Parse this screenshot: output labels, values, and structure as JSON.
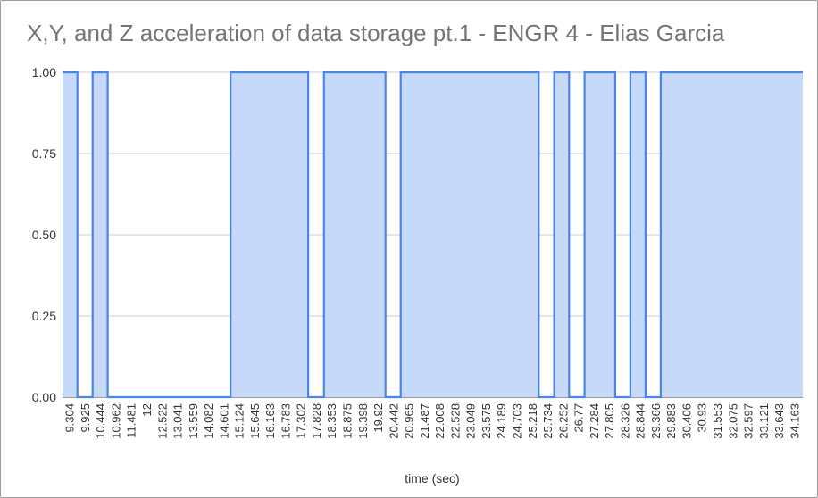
{
  "chart_data": {
    "type": "area",
    "title": "X,Y, and Z acceleration of data storage pt.1 - ENGR 4 - Elias Garcia",
    "xlabel": "time (sec)",
    "ylabel": "",
    "ylim": [
      0,
      1
    ],
    "yticks": [
      "0.00",
      "0.25",
      "0.50",
      "0.75",
      "1.00"
    ],
    "grid": true,
    "legend": "none",
    "x_tick_labels": [
      "9.304",
      "9.925",
      "10.444",
      "10.962",
      "11.481",
      "12",
      "12.522",
      "13.041",
      "13.559",
      "14.082",
      "14.601",
      "15.124",
      "15.645",
      "16.163",
      "16.783",
      "17.302",
      "17.828",
      "18.353",
      "18.875",
      "19.398",
      "19.92",
      "20.442",
      "20.965",
      "21.487",
      "22.008",
      "22.528",
      "23.049",
      "23.575",
      "24.189",
      "24.703",
      "25.218",
      "25.734",
      "26.252",
      "26.77",
      "27.284",
      "27.805",
      "28.326",
      "28.844",
      "29.366",
      "29.883",
      "30.406",
      "30.93",
      "31.553",
      "32.075",
      "32.597",
      "33.121",
      "33.643",
      "34.163"
    ],
    "x_range": [
      9.1,
      34.47
    ],
    "series": [
      {
        "color": "#4a86e8",
        "fill": "#c6d9f9",
        "points": [
          [
            9.1,
            1
          ],
          [
            9.61,
            1
          ],
          [
            9.61,
            0
          ],
          [
            10.13,
            0
          ],
          [
            10.13,
            1
          ],
          [
            10.65,
            1
          ],
          [
            10.65,
            0
          ],
          [
            14.86,
            0
          ],
          [
            14.86,
            1
          ],
          [
            17.52,
            1
          ],
          [
            17.52,
            0
          ],
          [
            18.06,
            0
          ],
          [
            18.06,
            1
          ],
          [
            20.17,
            1
          ],
          [
            20.17,
            0
          ],
          [
            20.69,
            0
          ],
          [
            20.69,
            1
          ],
          [
            25.42,
            1
          ],
          [
            25.42,
            0
          ],
          [
            25.95,
            0
          ],
          [
            25.95,
            1
          ],
          [
            26.46,
            1
          ],
          [
            26.46,
            0
          ],
          [
            26.99,
            0
          ],
          [
            26.99,
            1
          ],
          [
            28.04,
            1
          ],
          [
            28.04,
            0
          ],
          [
            28.56,
            0
          ],
          [
            28.56,
            1
          ],
          [
            29.08,
            1
          ],
          [
            29.08,
            0
          ],
          [
            29.6,
            0
          ],
          [
            29.6,
            1
          ],
          [
            34.47,
            1
          ]
        ]
      }
    ]
  }
}
